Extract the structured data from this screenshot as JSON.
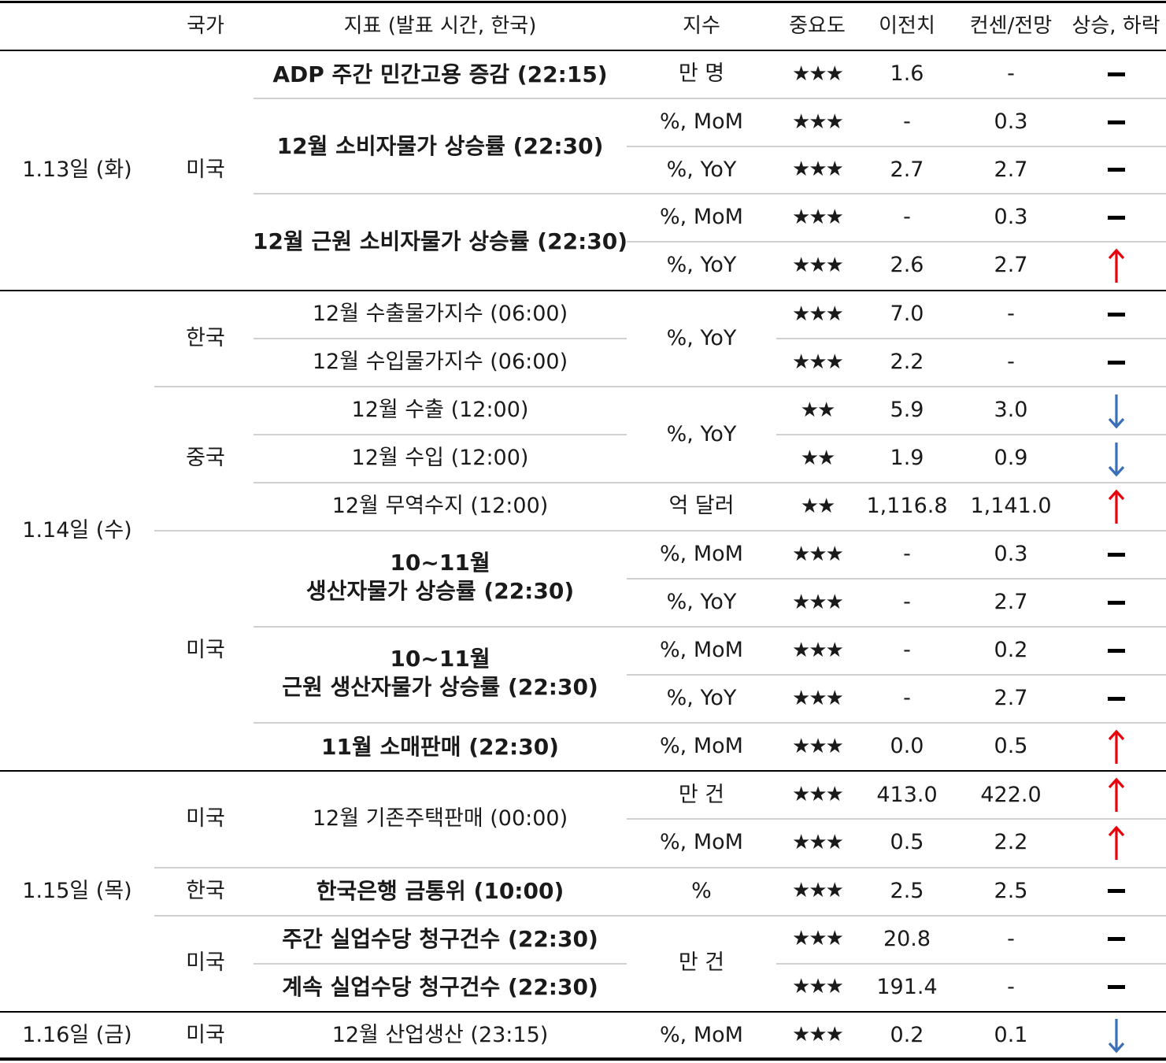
{
  "header": {
    "country": "국가",
    "indicator": "지표 (발표 시간, 한국)",
    "unit": "지수",
    "importance": "중요도",
    "previous": "이전치",
    "consensus": "컨센/전망",
    "trend": "상승, 하락"
  },
  "dates": [
    "1.13일 (화)",
    "1.14일 (수)",
    "1.15일 (목)",
    "1.16일 (금)"
  ],
  "countries": {
    "us": "미국",
    "kr": "한국",
    "cn": "중국"
  },
  "indicators": [
    "ADP 주간 민간고용 증감 (22:15)",
    "12월 소비자물가 상승률 (22:30)",
    "12월 근원 소비자물가 상승률 (22:30)",
    "12월 수출물가지수 (06:00)",
    "12월 수입물가지수 (06:00)",
    "12월 수출 (12:00)",
    "12월 수입 (12:00)",
    "12월 무역수지 (12:00)",
    "10~11월",
    "생산자물가 상승률 (22:30)",
    "10~11월",
    "근원 생산자물가 상승률 (22:30)",
    "11월 소매판매 (22:30)",
    "12월 기존주택판매 (00:00)",
    "한국은행 금통위 (10:00)",
    "주간 실업수당 청구건수 (22:30)",
    "계속 실업수당 청구건수 (22:30)",
    "12월 산업생산 (23:15)"
  ],
  "units": {
    "man_myeong": "만 명",
    "mom": "%, MoM",
    "yoy": "%, YoY",
    "eok_dollar": "억 달러",
    "man_geon": "만 건",
    "pct": "%"
  },
  "importance": {
    "three": "★★★",
    "two": "★★"
  },
  "rows": [
    {
      "prev": "1.6",
      "cons": "-",
      "trend": "flat"
    },
    {
      "prev": "-",
      "cons": "0.3",
      "trend": "flat"
    },
    {
      "prev": "2.7",
      "cons": "2.7",
      "trend": "flat"
    },
    {
      "prev": "-",
      "cons": "0.3",
      "trend": "flat"
    },
    {
      "prev": "2.6",
      "cons": "2.7",
      "trend": "up"
    },
    {
      "prev": "7.0",
      "cons": "-",
      "trend": "flat"
    },
    {
      "prev": "2.2",
      "cons": "-",
      "trend": "flat"
    },
    {
      "prev": "5.9",
      "cons": "3.0",
      "trend": "down"
    },
    {
      "prev": "1.9",
      "cons": "0.9",
      "trend": "down"
    },
    {
      "prev": "1,116.8",
      "cons": "1,141.0",
      "trend": "up"
    },
    {
      "prev": "-",
      "cons": "0.3",
      "trend": "flat"
    },
    {
      "prev": "-",
      "cons": "2.7",
      "trend": "flat"
    },
    {
      "prev": "-",
      "cons": "0.2",
      "trend": "flat"
    },
    {
      "prev": "-",
      "cons": "2.7",
      "trend": "flat"
    },
    {
      "prev": "0.0",
      "cons": "0.5",
      "trend": "up"
    },
    {
      "prev": "413.0",
      "cons": "422.0",
      "trend": "up"
    },
    {
      "prev": "0.5",
      "cons": "2.2",
      "trend": "up"
    },
    {
      "prev": "2.5",
      "cons": "2.5",
      "trend": "flat"
    },
    {
      "prev": "20.8",
      "cons": "-",
      "trend": "flat"
    },
    {
      "prev": "191.4",
      "cons": "-",
      "trend": "flat"
    },
    {
      "prev": "0.2",
      "cons": "0.1",
      "trend": "down"
    }
  ],
  "colors": {
    "up": "#e8000b",
    "down": "#3a6fb8",
    "flat": "#000000"
  },
  "icons": {
    "up": "arrow-up-icon",
    "down": "arrow-down-icon",
    "flat": "dash-icon"
  }
}
